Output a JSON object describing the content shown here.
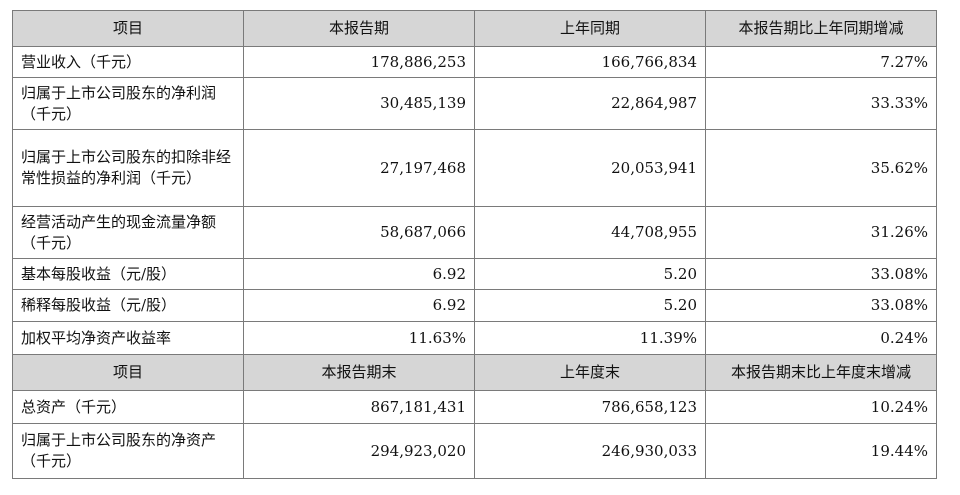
{
  "header_1": [
    "项目",
    "本报告期",
    "上年同期",
    "本报告期比上年同期增减"
  ],
  "rows_1": [
    {
      "label": "营业收入（千元）",
      "cur": "178,886,253",
      "prev": "166,766,834",
      "chg": "7.27%"
    },
    {
      "label": "归属于上市公司股东的净利润（千元）",
      "cur": "30,485,139",
      "prev": "22,864,987",
      "chg": "33.33%"
    },
    {
      "label": "归属于上市公司股东的扣除非经常性损益的净利润（千元）",
      "cur": "27,197,468",
      "prev": "20,053,941",
      "chg": "35.62%"
    },
    {
      "label": "经营活动产生的现金流量净额（千元）",
      "cur": "58,687,066",
      "prev": "44,708,955",
      "chg": "31.26%"
    },
    {
      "label": "基本每股收益（元/股）",
      "cur": "6.92",
      "prev": "5.20",
      "chg": "33.08%"
    },
    {
      "label": "稀释每股收益（元/股）",
      "cur": "6.92",
      "prev": "5.20",
      "chg": "33.08%"
    },
    {
      "label": "加权平均净资产收益率",
      "cur": "11.63%",
      "prev": "11.39%",
      "chg": "0.24%"
    }
  ],
  "header_2": [
    "项目",
    "本报告期末",
    "上年度末",
    "本报告期末比上年度末增减"
  ],
  "rows_2": [
    {
      "label": "总资产（千元）",
      "cur": "867,181,431",
      "prev": "786,658,123",
      "chg": "10.24%"
    },
    {
      "label": "归属于上市公司股东的净资产（千元）",
      "cur": "294,923,020",
      "prev": "246,930,033",
      "chg": "19.44%"
    }
  ]
}
